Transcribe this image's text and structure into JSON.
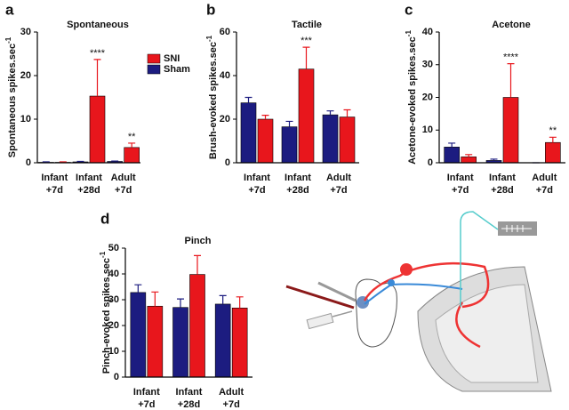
{
  "chart_data": [
    {
      "type": "bar",
      "panel": "a",
      "title": "Spontaneous",
      "ylabel": "Spontaneous spikes.sec",
      "ylabel_sup": "-1",
      "categories": [
        [
          "Infant",
          "+7d"
        ],
        [
          "Infant",
          "+28d"
        ],
        [
          "Adult",
          "+7d"
        ]
      ],
      "ylim": [
        0,
        30
      ],
      "yticks": [
        0,
        10,
        20,
        30
      ],
      "legend": "upper right",
      "series": [
        {
          "name": "Sham",
          "color": "#1c1c80",
          "values": [
            0.1,
            0.2,
            0.3
          ],
          "errors": [
            0.1,
            0.1,
            0.1
          ],
          "significance": [
            null,
            null,
            null
          ]
        },
        {
          "name": "SNI",
          "color": "#e8161c",
          "values": [
            0.1,
            15.3,
            3.5
          ],
          "errors": [
            0.1,
            8.4,
            1.0
          ],
          "significance": [
            null,
            "****",
            "**"
          ]
        }
      ]
    },
    {
      "type": "bar",
      "panel": "b",
      "title": "Tactile",
      "ylabel": "Brush-evoked spikes.sec",
      "ylabel_sup": "-1",
      "categories": [
        [
          "Infant",
          "+7d"
        ],
        [
          "Infant",
          "+28d"
        ],
        [
          "Adult",
          "+7d"
        ]
      ],
      "ylim": [
        0,
        60
      ],
      "yticks": [
        0,
        20,
        40,
        60
      ],
      "series": [
        {
          "name": "Sham",
          "color": "#1c1c80",
          "values": [
            27.5,
            16.5,
            22
          ],
          "errors": [
            2.5,
            2.5,
            1.8
          ],
          "significance": [
            null,
            null,
            null
          ]
        },
        {
          "name": "SNI",
          "color": "#e8161c",
          "values": [
            20,
            43,
            21
          ],
          "errors": [
            1.8,
            10,
            3.3
          ],
          "significance": [
            null,
            "***",
            null
          ]
        }
      ]
    },
    {
      "type": "bar",
      "panel": "c",
      "title": "Acetone",
      "ylabel": "Acetone-evoked spikes.sec",
      "ylabel_sup": "-1",
      "categories": [
        [
          "Infant",
          "+7d"
        ],
        [
          "Infant",
          "+28d"
        ],
        [
          "Adult",
          "+7d"
        ]
      ],
      "ylim": [
        0,
        40
      ],
      "yticks": [
        0,
        10,
        20,
        30,
        40
      ],
      "series": [
        {
          "name": "Sham",
          "color": "#1c1c80",
          "values": [
            4.8,
            0.7,
            0
          ],
          "errors": [
            1.2,
            0.4,
            0
          ],
          "significance": [
            null,
            null,
            null
          ]
        },
        {
          "name": "SNI",
          "color": "#e8161c",
          "values": [
            1.8,
            20,
            6.2
          ],
          "errors": [
            0.7,
            10.3,
            1.6
          ],
          "significance": [
            null,
            "****",
            "**"
          ]
        }
      ]
    },
    {
      "type": "bar",
      "panel": "d",
      "title": "Pinch",
      "ylabel": "Pinch-evoked spikes.sec",
      "ylabel_sup": "-1",
      "categories": [
        [
          "Infant",
          "+7d"
        ],
        [
          "Infant",
          "+28d"
        ],
        [
          "Adult",
          "+7d"
        ]
      ],
      "ylim": [
        0,
        50
      ],
      "yticks": [
        0,
        10,
        20,
        30,
        40,
        50
      ],
      "series": [
        {
          "name": "Sham",
          "color": "#1c1c80",
          "values": [
            32.8,
            27,
            28.3
          ],
          "errors": [
            3,
            3.3,
            3.3
          ],
          "significance": [
            null,
            null,
            null
          ]
        },
        {
          "name": "SNI",
          "color": "#e8161c",
          "values": [
            27.5,
            39.8,
            26.8
          ],
          "errors": [
            5.5,
            7.3,
            4.3
          ],
          "significance": [
            null,
            null,
            null
          ]
        }
      ]
    }
  ]
}
